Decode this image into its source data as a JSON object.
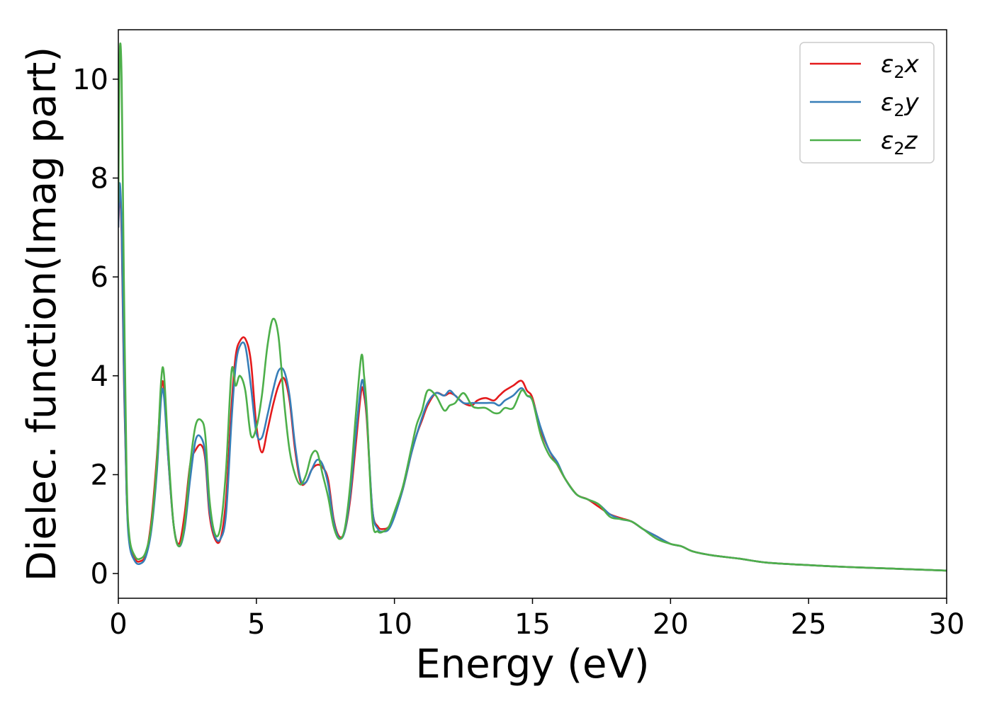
{
  "chart_data": {
    "type": "line",
    "title": "",
    "xlabel": "Energy (eV)",
    "ylabel": "Dielec. function(Imag part)",
    "xlim": [
      0,
      30
    ],
    "ylim": [
      -0.5,
      11
    ],
    "xticks": [
      0,
      5,
      10,
      15,
      20,
      25,
      30
    ],
    "yticks": [
      0,
      2,
      4,
      6,
      8,
      10
    ],
    "grid": false,
    "legend": "top-right",
    "x": [
      0,
      0.05,
      0.12,
      0.2,
      0.3,
      0.4,
      0.6,
      0.8,
      1.0,
      1.2,
      1.4,
      1.55,
      1.65,
      1.8,
      2.0,
      2.2,
      2.4,
      2.6,
      2.8,
      3.0,
      3.15,
      3.3,
      3.5,
      3.7,
      3.9,
      4.1,
      4.25,
      4.4,
      4.6,
      4.8,
      5.0,
      5.2,
      5.4,
      5.6,
      5.8,
      6.0,
      6.2,
      6.4,
      6.6,
      6.8,
      7.0,
      7.2,
      7.4,
      7.6,
      7.8,
      8.0,
      8.2,
      8.4,
      8.6,
      8.8,
      8.9,
      9.0,
      9.2,
      9.4,
      9.6,
      9.8,
      10.0,
      10.3,
      10.6,
      10.8,
      11.0,
      11.2,
      11.5,
      11.8,
      12.0,
      12.2,
      12.5,
      12.8,
      13.0,
      13.3,
      13.6,
      13.8,
      14.0,
      14.3,
      14.6,
      14.8,
      15.0,
      15.3,
      15.6,
      15.9,
      16.2,
      16.6,
      17.0,
      17.4,
      17.8,
      18.2,
      18.6,
      19.0,
      19.5,
      20.0,
      20.4,
      20.8,
      21.5,
      22.5,
      23.5,
      25.0,
      26.5,
      28.0,
      30.0
    ],
    "series": [
      {
        "name": "ε₂x",
        "color": "#e41a1c",
        "values": [
          7.0,
          7.7,
          6.8,
          4.0,
          1.6,
          0.7,
          0.3,
          0.25,
          0.4,
          1.1,
          2.4,
          3.7,
          3.75,
          2.4,
          1.0,
          0.6,
          1.2,
          2.2,
          2.5,
          2.6,
          2.3,
          1.2,
          0.7,
          0.7,
          1.5,
          3.4,
          4.4,
          4.7,
          4.75,
          4.3,
          3.0,
          2.45,
          2.9,
          3.4,
          3.8,
          3.95,
          3.5,
          2.5,
          1.85,
          1.85,
          2.1,
          2.2,
          2.15,
          1.9,
          1.1,
          0.75,
          0.85,
          1.5,
          2.6,
          3.7,
          3.6,
          3.1,
          1.3,
          0.95,
          0.9,
          0.95,
          1.2,
          1.7,
          2.4,
          2.8,
          3.1,
          3.4,
          3.65,
          3.6,
          3.65,
          3.6,
          3.45,
          3.4,
          3.5,
          3.55,
          3.5,
          3.6,
          3.7,
          3.8,
          3.9,
          3.7,
          3.55,
          2.9,
          2.5,
          2.2,
          1.9,
          1.6,
          1.5,
          1.35,
          1.2,
          1.12,
          1.05,
          0.9,
          0.75,
          0.6,
          0.55,
          0.45,
          0.37,
          0.3,
          0.22,
          0.17,
          0.13,
          0.1,
          0.06
        ]
      },
      {
        "name": "ε₂y",
        "color": "#377eb8",
        "values": [
          7.0,
          7.9,
          7.0,
          4.2,
          1.6,
          0.6,
          0.25,
          0.2,
          0.35,
          0.9,
          2.1,
          3.55,
          3.6,
          2.4,
          1.0,
          0.55,
          0.9,
          1.9,
          2.7,
          2.75,
          2.4,
          1.3,
          0.75,
          0.7,
          1.2,
          3.1,
          4.2,
          4.6,
          4.6,
          3.8,
          2.85,
          2.75,
          3.2,
          3.7,
          4.1,
          4.1,
          3.6,
          2.6,
          1.9,
          1.85,
          2.1,
          2.3,
          2.2,
          1.8,
          1.05,
          0.72,
          0.85,
          1.6,
          2.8,
          3.85,
          3.75,
          3.2,
          1.3,
          0.9,
          0.85,
          0.9,
          1.15,
          1.7,
          2.4,
          2.8,
          3.15,
          3.45,
          3.65,
          3.6,
          3.7,
          3.6,
          3.45,
          3.45,
          3.45,
          3.45,
          3.45,
          3.4,
          3.5,
          3.6,
          3.75,
          3.6,
          3.5,
          2.95,
          2.5,
          2.25,
          1.9,
          1.6,
          1.5,
          1.4,
          1.2,
          1.1,
          1.05,
          0.9,
          0.75,
          0.6,
          0.55,
          0.45,
          0.37,
          0.3,
          0.22,
          0.17,
          0.13,
          0.1,
          0.06
        ]
      },
      {
        "name": "ε₂z",
        "color": "#4daf4a",
        "values": [
          7.5,
          10.5,
          10.0,
          6.0,
          2.0,
          0.75,
          0.35,
          0.3,
          0.45,
          1.0,
          2.3,
          3.9,
          4.05,
          2.6,
          1.0,
          0.55,
          1.0,
          2.2,
          3.0,
          3.1,
          2.8,
          1.5,
          0.8,
          0.95,
          2.1,
          4.1,
          3.8,
          4.0,
          3.7,
          2.8,
          2.95,
          3.6,
          4.6,
          5.15,
          4.8,
          3.5,
          2.5,
          2.0,
          1.8,
          2.0,
          2.4,
          2.45,
          2.0,
          1.55,
          0.95,
          0.7,
          0.9,
          1.8,
          3.2,
          4.4,
          4.0,
          3.3,
          1.1,
          0.85,
          0.85,
          0.95,
          1.25,
          1.75,
          2.5,
          3.0,
          3.3,
          3.7,
          3.6,
          3.3,
          3.4,
          3.45,
          3.65,
          3.4,
          3.35,
          3.35,
          3.25,
          3.25,
          3.35,
          3.35,
          3.7,
          3.6,
          3.5,
          2.8,
          2.4,
          2.2,
          1.9,
          1.6,
          1.5,
          1.4,
          1.15,
          1.1,
          1.05,
          0.9,
          0.7,
          0.6,
          0.55,
          0.45,
          0.37,
          0.3,
          0.22,
          0.17,
          0.13,
          0.1,
          0.06
        ]
      }
    ]
  },
  "legend": {
    "entries": [
      {
        "base": "ε",
        "sub": "2",
        "axis": "x",
        "color": "#e41a1c"
      },
      {
        "base": "ε",
        "sub": "2",
        "axis": "y",
        "color": "#377eb8"
      },
      {
        "base": "ε",
        "sub": "2",
        "axis": "z",
        "color": "#4daf4a"
      }
    ]
  }
}
